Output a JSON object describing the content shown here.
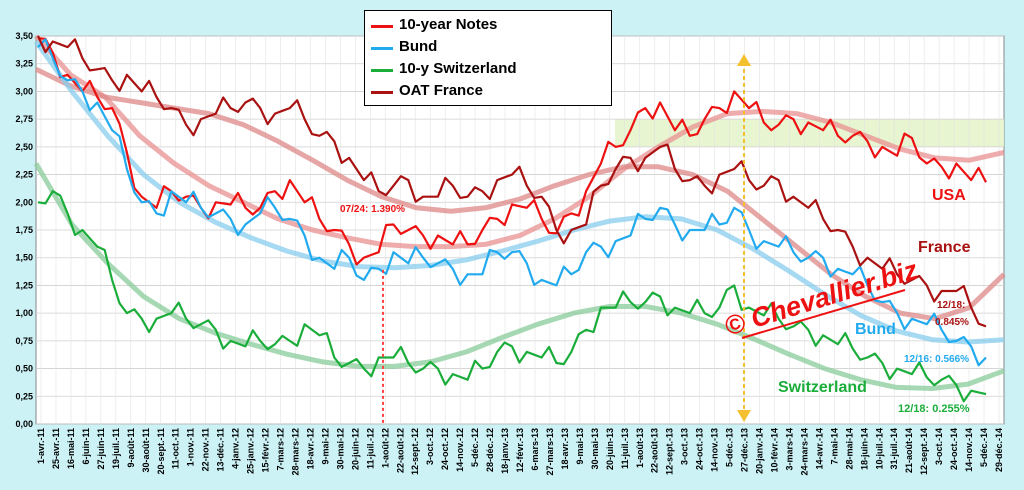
{
  "chart_data": {
    "type": "line",
    "ylim": [
      0,
      3.5
    ],
    "yticks": [
      "0,00",
      "0,25",
      "0,50",
      "0,75",
      "1,00",
      "1,25",
      "1,50",
      "1,75",
      "2,00",
      "2,25",
      "2,50",
      "2,75",
      "3,00",
      "3,25",
      "3,50"
    ],
    "xticks": [
      "1-avr.-11",
      "25-avr.-11",
      "16-mai-11",
      "6-juin-11",
      "27-juin-11",
      "19-juil.-11",
      "9-août-11",
      "30-août-11",
      "20-sept.-11",
      "11-oct.-11",
      "1-nov.-11",
      "22-nov.-11",
      "13-déc.-11",
      "4-janv.-12",
      "25-janv.-12",
      "15-févr.-12",
      "7-mars-12",
      "28-mars-12",
      "18-avr.-12",
      "9-mai-12",
      "30-mai-12",
      "20-juin-12",
      "11-juil.-12",
      "1-août-12",
      "22-août-12",
      "12-sept.-12",
      "3-oct.-12",
      "24-oct.-12",
      "14-nov.-12",
      "5-déc.-12",
      "28-déc.-12",
      "18-janv.-13",
      "12-févr.-13",
      "6-mars-13",
      "27-mars-13",
      "18-avr.-13",
      "9-mai-13",
      "30-mai-13",
      "20-juin-13",
      "11-juil.-13",
      "1-août-13",
      "22-août-13",
      "12-sept.-13",
      "3-oct.-13",
      "24-oct.-13",
      "14-nov.-13",
      "5-déc.-13",
      "27-déc.-13",
      "20-janv.-14",
      "10-févr.-14",
      "3-mars-14",
      "24-mars-14",
      "14-avr.-14",
      "7-mai-14",
      "28-mai-14",
      "18-juin-14",
      "10-juil.-14",
      "31-juil.-14",
      "21-août-14",
      "12-sept.-14",
      "3-oct.-14",
      "24-oct.-14",
      "14-nov.-14",
      "5-déc.-14",
      "29-déc.-14"
    ],
    "grid": true,
    "legend_position": "top-center",
    "series": [
      {
        "name": "10-year Notes",
        "color": "#ee1111",
        "values": [
          3.48,
          3.35,
          3.15,
          3.0,
          2.95,
          2.85,
          2.45,
          2.05,
          1.95,
          2.1,
          2.05,
          1.95,
          2.0,
          1.98,
          1.95,
          1.95,
          2.1,
          2.2,
          2.0,
          1.85,
          1.75,
          1.62,
          1.5,
          1.55,
          1.8,
          1.75,
          1.7,
          1.7,
          1.62,
          1.62,
          1.75,
          1.85,
          1.98,
          1.95,
          1.85,
          1.72,
          1.9,
          2.1,
          2.35,
          2.5,
          2.65,
          2.85,
          2.9,
          2.65,
          2.6,
          2.75,
          2.85,
          3.0,
          2.85,
          2.72,
          2.7,
          2.75,
          2.72,
          2.65,
          2.6,
          2.6,
          2.55,
          2.5,
          2.42,
          2.58,
          2.35,
          2.32,
          2.35,
          2.2,
          2.18
        ]
      },
      {
        "name": "Bund",
        "color": "#22aaee",
        "values": [
          3.4,
          3.3,
          3.1,
          3.0,
          2.9,
          2.65,
          2.3,
          2.0,
          1.9,
          2.1,
          2.0,
          1.95,
          1.9,
          1.85,
          1.8,
          1.9,
          1.95,
          1.85,
          1.7,
          1.5,
          1.4,
          1.5,
          1.3,
          1.4,
          1.55,
          1.45,
          1.5,
          1.45,
          1.4,
          1.35,
          1.35,
          1.55,
          1.55,
          1.45,
          1.3,
          1.25,
          1.35,
          1.55,
          1.6,
          1.65,
          1.7,
          1.85,
          1.95,
          1.8,
          1.75,
          1.75,
          1.8,
          1.95,
          1.75,
          1.65,
          1.6,
          1.55,
          1.5,
          1.5,
          1.4,
          1.35,
          1.25,
          1.1,
          1.0,
          0.95,
          0.9,
          0.85,
          0.75,
          0.7,
          0.6
        ]
      },
      {
        "name": "10-y Switzerland",
        "color": "#1aad3a",
        "values": [
          2.0,
          2.1,
          1.9,
          1.75,
          1.6,
          1.3,
          1.0,
          0.95,
          0.95,
          1.0,
          0.95,
          0.9,
          0.85,
          0.75,
          0.7,
          0.75,
          0.72,
          0.75,
          0.9,
          0.8,
          0.6,
          0.55,
          0.5,
          0.6,
          0.6,
          0.55,
          0.5,
          0.5,
          0.45,
          0.4,
          0.5,
          0.65,
          0.7,
          0.65,
          0.6,
          0.55,
          0.65,
          0.85,
          1.05,
          1.05,
          1.1,
          1.1,
          1.15,
          1.05,
          1.0,
          1.0,
          1.05,
          1.25,
          1.05,
          0.98,
          0.95,
          0.88,
          0.85,
          0.8,
          0.72,
          0.68,
          0.6,
          0.55,
          0.5,
          0.45,
          0.42,
          0.4,
          0.35,
          0.3,
          0.27
        ]
      },
      {
        "name": "OAT France",
        "color": "#aa1111",
        "values": [
          3.5,
          3.45,
          3.4,
          3.3,
          3.2,
          3.1,
          3.15,
          3.0,
          2.95,
          2.85,
          2.7,
          2.75,
          2.8,
          2.85,
          2.9,
          2.85,
          2.8,
          2.85,
          2.75,
          2.6,
          2.55,
          2.4,
          2.2,
          2.1,
          2.15,
          2.2,
          2.05,
          2.05,
          2.15,
          2.05,
          2.1,
          2.2,
          2.25,
          2.15,
          2.05,
          1.75,
          1.75,
          1.8,
          2.15,
          2.3,
          2.4,
          2.4,
          2.5,
          2.3,
          2.2,
          2.15,
          2.25,
          2.3,
          2.2,
          2.15,
          2.2,
          2.05,
          1.95,
          1.85,
          1.75,
          1.6,
          1.5,
          1.4,
          1.35,
          1.3,
          1.25,
          1.2,
          1.2,
          1.05,
          0.88
        ]
      }
    ],
    "trends": [
      {
        "color": "#e89090",
        "values": [
          3.5,
          3.15,
          2.95,
          2.6,
          2.35,
          2.15,
          2.0,
          1.85,
          1.75,
          1.68,
          1.62,
          1.6,
          1.6,
          1.62,
          1.7,
          1.85,
          2.05,
          2.3,
          2.5,
          2.68,
          2.8,
          2.82,
          2.8,
          2.72,
          2.6,
          2.48,
          2.4,
          2.38,
          2.45
        ]
      },
      {
        "color": "#dd8888",
        "values": [
          3.2,
          3.05,
          2.95,
          2.9,
          2.85,
          2.8,
          2.7,
          2.55,
          2.38,
          2.2,
          2.05,
          1.95,
          1.92,
          1.95,
          2.03,
          2.15,
          2.25,
          2.32,
          2.32,
          2.25,
          2.1,
          1.85,
          1.6,
          1.35,
          1.15,
          1.0,
          0.95,
          1.05,
          1.35
        ]
      },
      {
        "color": "#88ccee",
        "values": [
          3.45,
          3.0,
          2.6,
          2.25,
          2.0,
          1.82,
          1.68,
          1.56,
          1.47,
          1.42,
          1.41,
          1.43,
          1.48,
          1.56,
          1.65,
          1.75,
          1.83,
          1.87,
          1.85,
          1.75,
          1.58,
          1.38,
          1.17,
          0.98,
          0.84,
          0.76,
          0.74,
          0.76
        ]
      },
      {
        "color": "#88cc99",
        "values": [
          2.35,
          1.8,
          1.45,
          1.15,
          0.95,
          0.82,
          0.72,
          0.63,
          0.56,
          0.52,
          0.52,
          0.56,
          0.65,
          0.78,
          0.9,
          1.0,
          1.06,
          1.06,
          1.0,
          0.9,
          0.77,
          0.63,
          0.5,
          0.4,
          0.33,
          0.32,
          0.36,
          0.48
        ]
      }
    ],
    "target_zone": {
      "from": 2.5,
      "to": 2.75
    },
    "annotations": {
      "usa": "USA",
      "france": "France",
      "bund": "Bund",
      "switzerland": "Switzerland",
      "us_low": "07/24: 1.390%",
      "france_date": "12/18:",
      "france_val": "0.845%",
      "bund_last": "12/16: 0.566%",
      "swiss_last": "12/18: 0.255%",
      "watermark": "© Chevallier.biz"
    }
  }
}
